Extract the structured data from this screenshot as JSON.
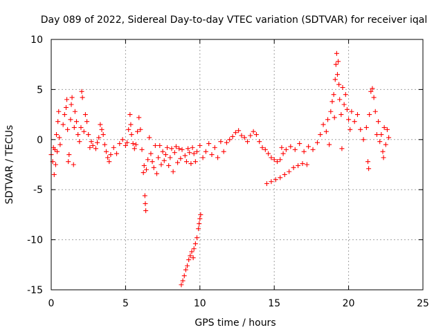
{
  "chart_data": {
    "type": "scatter",
    "title": "Day 089 of 2022, Sidereal Day-to-day VTEC variation (SDTVAR) for receiver iqal",
    "xlabel": "GPS time / hours",
    "ylabel": "SDTVAR / TECUs",
    "xlim": [
      0,
      25
    ],
    "ylim": [
      -15,
      10
    ],
    "xticks": [
      "0",
      "5",
      "10",
      "15",
      "20",
      "25"
    ],
    "yticks": [
      "10",
      "5",
      "0",
      "-5",
      "-10",
      "-15"
    ],
    "grid": true,
    "marker": "plus",
    "color": "#ff0000",
    "series": [
      {
        "name": "SDTVAR",
        "points": [
          [
            0.0,
            -1.5
          ],
          [
            0.1,
            -2.2
          ],
          [
            0.15,
            -0.8
          ],
          [
            0.2,
            -3.5
          ],
          [
            0.25,
            -1.0
          ],
          [
            0.3,
            -2.5
          ],
          [
            0.35,
            0.5
          ],
          [
            0.4,
            -1.2
          ],
          [
            0.45,
            1.8
          ],
          [
            0.5,
            2.8
          ],
          [
            0.55,
            0.2
          ],
          [
            0.6,
            -0.5
          ],
          [
            0.8,
            1.5
          ],
          [
            0.9,
            2.5
          ],
          [
            1.0,
            3.2
          ],
          [
            1.05,
            4.0
          ],
          [
            1.1,
            1.0
          ],
          [
            1.15,
            -2.2
          ],
          [
            1.2,
            -1.5
          ],
          [
            1.3,
            2.0
          ],
          [
            1.35,
            3.5
          ],
          [
            1.4,
            4.2
          ],
          [
            1.5,
            -2.5
          ],
          [
            1.55,
            1.2
          ],
          [
            1.6,
            2.8
          ],
          [
            1.7,
            1.8
          ],
          [
            1.8,
            0.5
          ],
          [
            1.9,
            -0.2
          ],
          [
            2.0,
            1.2
          ],
          [
            2.05,
            4.8
          ],
          [
            2.1,
            4.2
          ],
          [
            2.2,
            0.8
          ],
          [
            2.3,
            2.5
          ],
          [
            2.4,
            1.8
          ],
          [
            2.5,
            0.5
          ],
          [
            2.6,
            -0.8
          ],
          [
            2.7,
            -0.2
          ],
          [
            2.8,
            -0.6
          ],
          [
            3.0,
            -0.9
          ],
          [
            3.1,
            -0.3
          ],
          [
            3.2,
            0.2
          ],
          [
            3.3,
            1.5
          ],
          [
            3.4,
            1.0
          ],
          [
            3.5,
            0.5
          ],
          [
            3.6,
            -0.5
          ],
          [
            3.7,
            -1.2
          ],
          [
            3.8,
            -1.8
          ],
          [
            3.9,
            -2.2
          ],
          [
            4.0,
            -1.5
          ],
          [
            4.2,
            -0.8
          ],
          [
            4.4,
            -1.4
          ],
          [
            4.6,
            -0.4
          ],
          [
            4.8,
            0.0
          ],
          [
            5.0,
            -0.6
          ],
          [
            5.1,
            -0.3
          ],
          [
            5.2,
            1.0
          ],
          [
            5.3,
            2.5
          ],
          [
            5.35,
            1.5
          ],
          [
            5.4,
            0.5
          ],
          [
            5.5,
            -0.4
          ],
          [
            5.6,
            -0.9
          ],
          [
            5.7,
            -0.5
          ],
          [
            5.8,
            0.8
          ],
          [
            5.9,
            2.2
          ],
          [
            6.0,
            1.0
          ],
          [
            6.1,
            -1.0
          ],
          [
            6.2,
            -3.3
          ],
          [
            6.25,
            -2.6
          ],
          [
            6.3,
            -5.6
          ],
          [
            6.33,
            -6.4
          ],
          [
            6.36,
            -7.1
          ],
          [
            6.4,
            -3.0
          ],
          [
            6.5,
            -2.0
          ],
          [
            6.6,
            0.2
          ],
          [
            6.7,
            -1.4
          ],
          [
            6.8,
            -2.2
          ],
          [
            6.9,
            -2.8
          ],
          [
            7.0,
            -0.6
          ],
          [
            7.1,
            -3.4
          ],
          [
            7.2,
            -1.8
          ],
          [
            7.3,
            -0.6
          ],
          [
            7.4,
            -2.5
          ],
          [
            7.5,
            -1.2
          ],
          [
            7.6,
            -2.1
          ],
          [
            7.7,
            -1.5
          ],
          [
            7.8,
            -0.8
          ],
          [
            7.9,
            -2.6
          ],
          [
            8.0,
            -1.8
          ],
          [
            8.1,
            -0.9
          ],
          [
            8.2,
            -3.2
          ],
          [
            8.3,
            -1.3
          ],
          [
            8.4,
            -0.7
          ],
          [
            8.5,
            -2.3
          ],
          [
            8.6,
            -0.9
          ],
          [
            8.7,
            -1.9
          ],
          [
            8.8,
            -1.0
          ],
          [
            8.75,
            -14.5
          ],
          [
            8.85,
            -14.1
          ],
          [
            8.95,
            -13.6
          ],
          [
            9.05,
            -13.0
          ],
          [
            9.15,
            -12.6
          ],
          [
            9.25,
            -12.0
          ],
          [
            9.35,
            -11.6
          ],
          [
            9.45,
            -11.2
          ],
          [
            9.55,
            -11.8
          ],
          [
            9.6,
            -10.9
          ],
          [
            9.7,
            -10.4
          ],
          [
            9.8,
            -9.8
          ],
          [
            9.9,
            -8.9
          ],
          [
            9.95,
            -8.4
          ],
          [
            10.0,
            -7.9
          ],
          [
            10.05,
            -7.5
          ],
          [
            9.0,
            -1.6
          ],
          [
            9.1,
            -2.2
          ],
          [
            9.2,
            -0.9
          ],
          [
            9.3,
            -1.3
          ],
          [
            9.4,
            -2.4
          ],
          [
            9.5,
            -0.8
          ],
          [
            9.6,
            -1.4
          ],
          [
            9.7,
            -2.2
          ],
          [
            9.8,
            -1.2
          ],
          [
            10.0,
            -0.6
          ],
          [
            10.2,
            -1.8
          ],
          [
            10.4,
            -1.2
          ],
          [
            10.6,
            -0.4
          ],
          [
            10.8,
            -1.5
          ],
          [
            11.0,
            -0.8
          ],
          [
            11.2,
            -1.8
          ],
          [
            11.4,
            -0.2
          ],
          [
            11.6,
            -1.2
          ],
          [
            11.8,
            -0.3
          ],
          [
            12.0,
            0.0
          ],
          [
            12.2,
            0.3
          ],
          [
            12.4,
            0.7
          ],
          [
            12.6,
            0.9
          ],
          [
            12.8,
            0.4
          ],
          [
            13.0,
            0.2
          ],
          [
            13.2,
            -0.2
          ],
          [
            13.4,
            0.4
          ],
          [
            13.6,
            0.8
          ],
          [
            13.8,
            0.5
          ],
          [
            14.0,
            -0.2
          ],
          [
            14.2,
            -0.8
          ],
          [
            14.4,
            -1.0
          ],
          [
            14.6,
            -1.4
          ],
          [
            14.8,
            -1.8
          ],
          [
            15.0,
            -2.0
          ],
          [
            15.2,
            -2.2
          ],
          [
            15.4,
            -2.0
          ],
          [
            15.6,
            -1.4
          ],
          [
            14.5,
            -4.4
          ],
          [
            14.8,
            -4.2
          ],
          [
            15.1,
            -4.0
          ],
          [
            15.4,
            -3.8
          ],
          [
            15.7,
            -3.5
          ],
          [
            16.0,
            -3.2
          ],
          [
            16.3,
            -2.8
          ],
          [
            16.6,
            -2.6
          ],
          [
            16.9,
            -2.4
          ],
          [
            17.2,
            -2.5
          ],
          [
            15.5,
            -0.8
          ],
          [
            15.8,
            -1.0
          ],
          [
            16.1,
            -0.7
          ],
          [
            16.4,
            -1.0
          ],
          [
            16.7,
            -0.4
          ],
          [
            17.0,
            -1.2
          ],
          [
            17.3,
            -0.7
          ],
          [
            17.6,
            -1.0
          ],
          [
            17.9,
            -0.3
          ],
          [
            18.1,
            0.5
          ],
          [
            18.3,
            1.5
          ],
          [
            18.5,
            0.8
          ],
          [
            18.6,
            2.0
          ],
          [
            18.7,
            -0.5
          ],
          [
            18.8,
            2.8
          ],
          [
            18.9,
            3.8
          ],
          [
            19.0,
            4.5
          ],
          [
            19.05,
            2.2
          ],
          [
            19.1,
            6.0
          ],
          [
            19.15,
            7.5
          ],
          [
            19.2,
            8.6
          ],
          [
            19.25,
            6.5
          ],
          [
            19.3,
            7.8
          ],
          [
            19.35,
            5.5
          ],
          [
            19.4,
            4.0
          ],
          [
            19.5,
            2.5
          ],
          [
            19.55,
            -0.9
          ],
          [
            19.6,
            5.2
          ],
          [
            19.7,
            3.5
          ],
          [
            19.8,
            4.5
          ],
          [
            19.9,
            3.0
          ],
          [
            20.0,
            2.0
          ],
          [
            20.1,
            1.0
          ],
          [
            20.2,
            2.8
          ],
          [
            20.4,
            1.8
          ],
          [
            20.6,
            2.5
          ],
          [
            20.8,
            1.0
          ],
          [
            21.0,
            0.0
          ],
          [
            21.2,
            1.2
          ],
          [
            21.3,
            -2.2
          ],
          [
            21.35,
            -2.9
          ],
          [
            21.4,
            2.5
          ],
          [
            21.5,
            4.8
          ],
          [
            21.6,
            5.1
          ],
          [
            21.7,
            4.2
          ],
          [
            21.8,
            2.8
          ],
          [
            21.9,
            0.5
          ],
          [
            22.0,
            1.8
          ],
          [
            22.1,
            -0.2
          ],
          [
            22.2,
            0.5
          ],
          [
            22.3,
            -1.2
          ],
          [
            22.35,
            -1.8
          ],
          [
            22.4,
            1.2
          ],
          [
            22.5,
            -0.5
          ],
          [
            22.6,
            1.0
          ],
          [
            22.7,
            0.2
          ]
        ]
      }
    ]
  }
}
